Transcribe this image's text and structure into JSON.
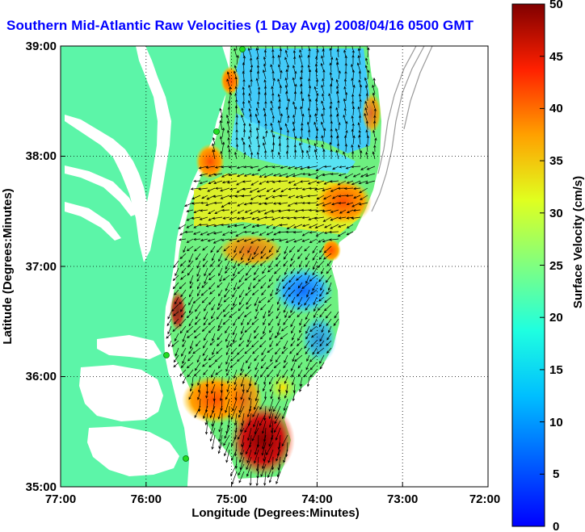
{
  "title": "Southern Mid-Atlantic Raw Velocities (1 Day Avg) 2008/04/16 0500 GMT",
  "map": {
    "xlabel": "Longitude (Degrees:Minutes)",
    "ylabel": "Latitude (Degrees:Minutes)",
    "x_ticks": [
      "77:00",
      "76:00",
      "75:00",
      "74:00",
      "73:00",
      "72:00"
    ],
    "y_ticks": [
      "39:00",
      "38:00",
      "37:00",
      "36:00",
      "35:00"
    ],
    "land_color": "#5cf5a8",
    "water_color": "#ffffff",
    "station_color": "#22dd22"
  },
  "colorbar": {
    "label": "Surface Velocity (cm/s)",
    "ticks": [
      "50",
      "45",
      "40",
      "35",
      "30",
      "25",
      "20",
      "15",
      "10",
      "5",
      "0"
    ],
    "range": [
      0,
      50
    ],
    "units": "cm/s"
  }
}
